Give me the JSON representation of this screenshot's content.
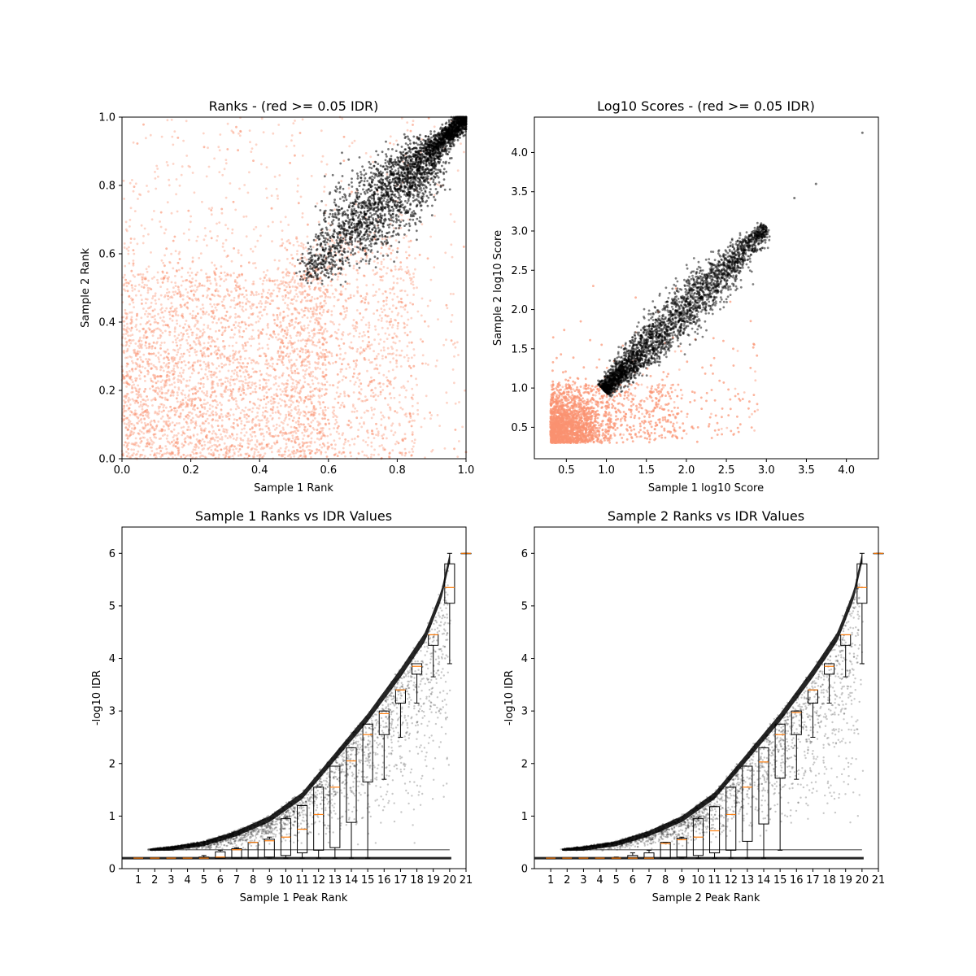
{
  "colors": {
    "reproducible": "#000000",
    "irreproducible": "#fa9372",
    "median": "#ff7f0e",
    "axes": "#000000"
  },
  "chart_data": [
    {
      "type": "scatter",
      "title": "Ranks - (red >= 0.05 IDR)",
      "xlabel": "Sample 1 Rank",
      "ylabel": "Sample 2 Rank",
      "xlim": [
        0,
        1
      ],
      "ylim": [
        0,
        1
      ],
      "xticks": [
        "0.0",
        "0.2",
        "0.4",
        "0.6",
        "0.8",
        "1.0"
      ],
      "yticks": [
        "0.0",
        "0.2",
        "0.4",
        "0.6",
        "0.8",
        "1.0"
      ],
      "series": [
        {
          "color": "#fa9372",
          "distribution": "irreproducible peaks: dense over x 0–0.8, y 0–0.7, sparse over the whole square",
          "x_range": [
            0,
            1
          ],
          "y_range": [
            0,
            1
          ]
        },
        {
          "color": "#000000",
          "distribution": "reproducible peaks: elongated band along the diagonal",
          "band_start": [
            0.52,
            0.52
          ],
          "band_end": [
            1.0,
            1.0
          ]
        }
      ]
    },
    {
      "type": "scatter",
      "title": "Log10 Scores - (red >= 0.05 IDR)",
      "xlabel": "Sample 1 log10 Score",
      "ylabel": "Sample 2 log10 Score",
      "xlim": [
        0.1,
        4.4
      ],
      "ylim": [
        0.1,
        4.45
      ],
      "xticks": [
        "0.5",
        "1.0",
        "1.5",
        "2.0",
        "2.5",
        "3.0",
        "3.5",
        "4.0"
      ],
      "yticks": [
        "0.5",
        "1.0",
        "1.5",
        "2.0",
        "2.5",
        "3.0",
        "3.5",
        "4.0"
      ],
      "series": [
        {
          "color": "#fa9372",
          "distribution": "irreproducible peaks: dense cluster at low scores",
          "x_range": [
            0.3,
            2.9
          ],
          "y_range": [
            0.3,
            2.6
          ]
        },
        {
          "color": "#000000",
          "distribution": "reproducible peaks: band rising from (1.0, 1.0) to (3.0, 3.0)",
          "band_start": [
            0.97,
            0.97
          ],
          "band_end": [
            3.0,
            3.05
          ],
          "outliers": [
            [
              3.35,
              3.42
            ],
            [
              3.62,
              3.6
            ],
            [
              4.2,
              4.25
            ]
          ]
        }
      ]
    },
    {
      "type": "box",
      "title": "Sample 1 Ranks vs IDR Values",
      "xlabel": "Sample 1 Peak Rank",
      "ylabel": "-log10 IDR",
      "xlim": [
        0,
        21
      ],
      "ylim": [
        0,
        6.5
      ],
      "xticks": [
        "1",
        "2",
        "3",
        "4",
        "5",
        "6",
        "7",
        "8",
        "9",
        "10",
        "11",
        "12",
        "13",
        "14",
        "15",
        "16",
        "17",
        "18",
        "19",
        "20",
        "21"
      ],
      "yticks": [
        "0",
        "1",
        "2",
        "3",
        "4",
        "5",
        "6"
      ],
      "scatter_envelope": {
        "x": [
          1.7,
          3,
          5,
          7,
          9,
          11,
          13,
          15,
          17,
          18.5,
          19.5,
          20
        ],
        "y_top": [
          0.37,
          0.42,
          0.52,
          0.72,
          1.0,
          1.45,
          2.2,
          2.95,
          3.8,
          4.5,
          5.3,
          6.0
        ]
      },
      "boxes": [
        {
          "pos": 1,
          "q1": 0.2,
          "median": 0.2,
          "q3": 0.2,
          "whisker_low": 0.2,
          "whisker_high": 0.2
        },
        {
          "pos": 2,
          "q1": 0.2,
          "median": 0.2,
          "q3": 0.2,
          "whisker_low": 0.2,
          "whisker_high": 0.2
        },
        {
          "pos": 3,
          "q1": 0.2,
          "median": 0.2,
          "q3": 0.2,
          "whisker_low": 0.2,
          "whisker_high": 0.2
        },
        {
          "pos": 4,
          "q1": 0.2,
          "median": 0.2,
          "q3": 0.2,
          "whisker_low": 0.2,
          "whisker_high": 0.2
        },
        {
          "pos": 5,
          "q1": 0.2,
          "median": 0.2,
          "q3": 0.22,
          "whisker_low": 0.2,
          "whisker_high": 0.25
        },
        {
          "pos": 6,
          "q1": 0.2,
          "median": 0.22,
          "q3": 0.32,
          "whisker_low": 0.2,
          "whisker_high": 0.35
        },
        {
          "pos": 7,
          "q1": 0.2,
          "median": 0.36,
          "q3": 0.38,
          "whisker_low": 0.2,
          "whisker_high": 0.4
        },
        {
          "pos": 8,
          "q1": 0.2,
          "median": 0.5,
          "q3": 0.5,
          "whisker_low": 0.2,
          "whisker_high": 0.5
        },
        {
          "pos": 9,
          "q1": 0.22,
          "median": 0.53,
          "q3": 0.56,
          "whisker_low": 0.2,
          "whisker_high": 0.6
        },
        {
          "pos": 10,
          "q1": 0.25,
          "median": 0.6,
          "q3": 0.95,
          "whisker_low": 0.2,
          "whisker_high": 0.98
        },
        {
          "pos": 11,
          "q1": 0.3,
          "median": 0.75,
          "q3": 1.2,
          "whisker_low": 0.2,
          "whisker_high": 1.2
        },
        {
          "pos": 12,
          "q1": 0.35,
          "median": 1.03,
          "q3": 1.55,
          "whisker_low": 0.2,
          "whisker_high": 1.55
        },
        {
          "pos": 13,
          "q1": 0.4,
          "median": 1.55,
          "q3": 1.95,
          "whisker_low": 0.2,
          "whisker_high": 1.95
        },
        {
          "pos": 14,
          "q1": 0.88,
          "median": 2.05,
          "q3": 2.3,
          "whisker_low": 0.2,
          "whisker_high": 2.3
        },
        {
          "pos": 15,
          "q1": 1.65,
          "median": 2.55,
          "q3": 2.75,
          "whisker_low": 0.2,
          "whisker_high": 2.75
        },
        {
          "pos": 16,
          "q1": 2.55,
          "median": 2.95,
          "q3": 3.0,
          "whisker_low": 1.7,
          "whisker_high": 3.0
        },
        {
          "pos": 17,
          "q1": 3.15,
          "median": 3.4,
          "q3": 3.4,
          "whisker_low": 2.5,
          "whisker_high": 3.4
        },
        {
          "pos": 18,
          "q1": 3.7,
          "median": 3.85,
          "q3": 3.9,
          "whisker_low": 3.15,
          "whisker_high": 3.9
        },
        {
          "pos": 19,
          "q1": 4.25,
          "median": 4.45,
          "q3": 4.45,
          "whisker_low": 3.65,
          "whisker_high": 4.45
        },
        {
          "pos": 20,
          "q1": 5.05,
          "median": 5.35,
          "q3": 5.8,
          "whisker_low": 3.9,
          "whisker_high": 6.0
        },
        {
          "pos": 21,
          "q1": 6.0,
          "median": 6.0,
          "q3": 6.0,
          "whisker_low": 6.0,
          "whisker_high": 6.0
        }
      ]
    },
    {
      "type": "box",
      "title": "Sample 2 Ranks vs IDR Values",
      "xlabel": "Sample 2 Peak Rank",
      "ylabel": "-log10 IDR",
      "xlim": [
        0,
        21
      ],
      "ylim": [
        0,
        6.5
      ],
      "xticks": [
        "1",
        "2",
        "3",
        "4",
        "5",
        "6",
        "7",
        "8",
        "9",
        "10",
        "11",
        "12",
        "13",
        "14",
        "15",
        "16",
        "17",
        "18",
        "19",
        "20",
        "21"
      ],
      "yticks": [
        "0",
        "1",
        "2",
        "3",
        "4",
        "5",
        "6"
      ],
      "scatter_envelope": {
        "x": [
          1.7,
          3,
          5,
          7,
          9,
          11,
          13,
          15,
          17,
          18.5,
          19.5,
          20
        ],
        "y_top": [
          0.37,
          0.42,
          0.52,
          0.72,
          1.0,
          1.45,
          2.2,
          2.95,
          3.8,
          4.5,
          5.3,
          6.0
        ]
      },
      "boxes": [
        {
          "pos": 1,
          "q1": 0.2,
          "median": 0.2,
          "q3": 0.2,
          "whisker_low": 0.2,
          "whisker_high": 0.2
        },
        {
          "pos": 2,
          "q1": 0.2,
          "median": 0.2,
          "q3": 0.2,
          "whisker_low": 0.2,
          "whisker_high": 0.2
        },
        {
          "pos": 3,
          "q1": 0.2,
          "median": 0.2,
          "q3": 0.2,
          "whisker_low": 0.2,
          "whisker_high": 0.2
        },
        {
          "pos": 4,
          "q1": 0.2,
          "median": 0.2,
          "q3": 0.2,
          "whisker_low": 0.2,
          "whisker_high": 0.2
        },
        {
          "pos": 5,
          "q1": 0.2,
          "median": 0.2,
          "q3": 0.2,
          "whisker_low": 0.2,
          "whisker_high": 0.22
        },
        {
          "pos": 6,
          "q1": 0.2,
          "median": 0.2,
          "q3": 0.25,
          "whisker_low": 0.2,
          "whisker_high": 0.3
        },
        {
          "pos": 7,
          "q1": 0.2,
          "median": 0.2,
          "q3": 0.3,
          "whisker_low": 0.2,
          "whisker_high": 0.35
        },
        {
          "pos": 8,
          "q1": 0.2,
          "median": 0.48,
          "q3": 0.5,
          "whisker_low": 0.2,
          "whisker_high": 0.5
        },
        {
          "pos": 9,
          "q1": 0.22,
          "median": 0.55,
          "q3": 0.58,
          "whisker_low": 0.2,
          "whisker_high": 0.6
        },
        {
          "pos": 10,
          "q1": 0.25,
          "median": 0.6,
          "q3": 0.95,
          "whisker_low": 0.2,
          "whisker_high": 0.98
        },
        {
          "pos": 11,
          "q1": 0.3,
          "median": 0.72,
          "q3": 1.18,
          "whisker_low": 0.2,
          "whisker_high": 1.18
        },
        {
          "pos": 12,
          "q1": 0.35,
          "median": 1.03,
          "q3": 1.55,
          "whisker_low": 0.2,
          "whisker_high": 1.55
        },
        {
          "pos": 13,
          "q1": 0.52,
          "median": 1.55,
          "q3": 1.95,
          "whisker_low": 0.2,
          "whisker_high": 1.95
        },
        {
          "pos": 14,
          "q1": 0.85,
          "median": 2.03,
          "q3": 2.3,
          "whisker_low": 0.2,
          "whisker_high": 2.3
        },
        {
          "pos": 15,
          "q1": 1.72,
          "median": 2.55,
          "q3": 2.75,
          "whisker_low": 0.35,
          "whisker_high": 2.75
        },
        {
          "pos": 16,
          "q1": 2.55,
          "median": 2.97,
          "q3": 3.0,
          "whisker_low": 1.7,
          "whisker_high": 3.0
        },
        {
          "pos": 17,
          "q1": 3.15,
          "median": 3.4,
          "q3": 3.4,
          "whisker_low": 2.5,
          "whisker_high": 3.4
        },
        {
          "pos": 18,
          "q1": 3.7,
          "median": 3.85,
          "q3": 3.9,
          "whisker_low": 3.15,
          "whisker_high": 3.9
        },
        {
          "pos": 19,
          "q1": 4.25,
          "median": 4.45,
          "q3": 4.45,
          "whisker_low": 3.65,
          "whisker_high": 4.45
        },
        {
          "pos": 20,
          "q1": 5.05,
          "median": 5.35,
          "q3": 5.8,
          "whisker_low": 3.9,
          "whisker_high": 6.0
        },
        {
          "pos": 21,
          "q1": 6.0,
          "median": 6.0,
          "q3": 6.0,
          "whisker_low": 6.0,
          "whisker_high": 6.0
        }
      ]
    }
  ]
}
